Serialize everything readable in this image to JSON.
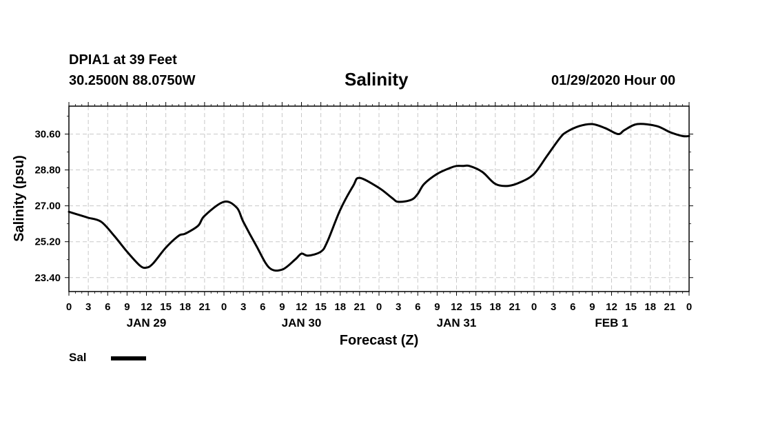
{
  "header": {
    "station": "DPIA1 at 39 Feet",
    "coords": "30.2500N 88.0750W",
    "title": "Salinity",
    "datetime": "01/29/2020 Hour 00"
  },
  "legend": {
    "label": "Sal"
  },
  "chart_data": {
    "type": "line",
    "title": "Salinity",
    "xlabel": "Forecast (Z)",
    "ylabel": "Salinity (psu)",
    "xlim": [
      0,
      96
    ],
    "ylim": [
      22.7,
      32.0
    ],
    "yticks": [
      23.4,
      25.2,
      27.0,
      28.8,
      30.6
    ],
    "ytick_labels": [
      "23.40",
      "25.20",
      "27.00",
      "28.80",
      "30.60"
    ],
    "xticks": [
      0,
      3,
      6,
      9,
      12,
      15,
      18,
      21,
      24,
      27,
      30,
      33,
      36,
      39,
      42,
      45,
      48,
      51,
      54,
      57,
      60,
      63,
      66,
      69,
      72,
      75,
      78,
      81,
      84,
      87,
      90,
      93,
      96
    ],
    "xtick_labels": [
      "0",
      "3",
      "6",
      "9",
      "12",
      "15",
      "18",
      "21",
      "0",
      "3",
      "6",
      "9",
      "12",
      "15",
      "18",
      "21",
      "0",
      "3",
      "6",
      "9",
      "12",
      "15",
      "18",
      "21",
      "0",
      "3",
      "6",
      "9",
      "12",
      "15",
      "18",
      "21",
      "0"
    ],
    "date_labels": [
      {
        "x": 12,
        "label": "JAN 29"
      },
      {
        "x": 36,
        "label": "JAN 30"
      },
      {
        "x": 60,
        "label": "JAN 31"
      },
      {
        "x": 84,
        "label": "FEB 1"
      }
    ],
    "grid": true,
    "legend_position": "bottom-left",
    "series": [
      {
        "name": "Sal",
        "color": "#000000",
        "x": [
          0,
          2,
          3,
          5,
          7,
          9,
          11,
          12,
          13,
          15,
          17,
          18,
          20,
          21,
          24,
          26,
          27,
          29,
          31,
          33,
          35,
          36,
          37,
          39,
          40,
          42,
          44,
          45,
          48,
          50,
          51,
          53,
          54,
          55,
          57,
          59,
          60,
          61,
          62,
          64,
          66,
          68,
          70,
          72,
          74,
          76,
          77,
          79,
          81,
          83,
          85,
          86,
          88,
          91,
          93,
          95,
          96
        ],
        "values": [
          26.7,
          26.5,
          26.4,
          26.2,
          25.5,
          24.7,
          24.0,
          23.9,
          24.1,
          24.9,
          25.5,
          25.6,
          26.0,
          26.5,
          27.2,
          26.9,
          26.2,
          25.0,
          23.9,
          23.8,
          24.3,
          24.6,
          24.5,
          24.7,
          25.2,
          26.8,
          28.0,
          28.4,
          27.9,
          27.4,
          27.2,
          27.3,
          27.6,
          28.1,
          28.6,
          28.9,
          29.0,
          29.0,
          29.0,
          28.7,
          28.1,
          28.0,
          28.2,
          28.6,
          29.5,
          30.4,
          30.7,
          31.0,
          31.1,
          30.9,
          30.6,
          30.8,
          31.1,
          31.0,
          30.7,
          30.5,
          30.5
        ]
      }
    ]
  }
}
